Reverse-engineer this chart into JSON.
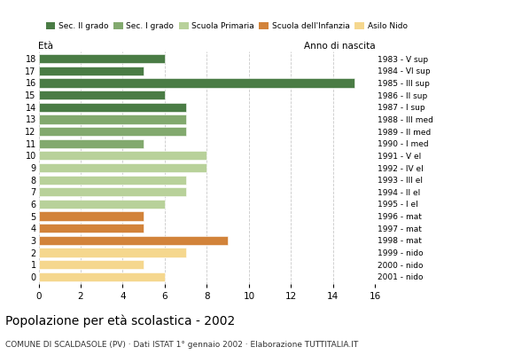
{
  "ages": [
    0,
    1,
    2,
    3,
    4,
    5,
    6,
    7,
    8,
    9,
    10,
    11,
    12,
    13,
    14,
    15,
    16,
    17,
    18
  ],
  "values": [
    6,
    5,
    7,
    9,
    5,
    5,
    6,
    7,
    7,
    8,
    8,
    5,
    7,
    7,
    7,
    6,
    15,
    5,
    6
  ],
  "categories": [
    "Sec. II grado",
    "Sec. I grado",
    "Scuola Primaria",
    "Scuola dell'Infanzia",
    "Asilo Nido"
  ],
  "colors": {
    "Sec. II grado": "#4a7c45",
    "Sec. I grado": "#82a96e",
    "Scuola Primaria": "#b8d19a",
    "Scuola dell'Infanzia": "#d2833a",
    "Asilo Nido": "#f5d78e"
  },
  "bar_colors": [
    "#f5d78e",
    "#f5d78e",
    "#f5d78e",
    "#d2833a",
    "#d2833a",
    "#d2833a",
    "#b8d19a",
    "#b8d19a",
    "#b8d19a",
    "#b8d19a",
    "#b8d19a",
    "#82a96e",
    "#82a96e",
    "#82a96e",
    "#4a7c45",
    "#4a7c45",
    "#4a7c45",
    "#4a7c45",
    "#4a7c45"
  ],
  "right_labels": [
    "2001 - nido",
    "2000 - nido",
    "1999 - nido",
    "1998 - mat",
    "1997 - mat",
    "1996 - mat",
    "1995 - I el",
    "1994 - II el",
    "1993 - III el",
    "1992 - IV el",
    "1991 - V el",
    "1990 - I med",
    "1989 - II med",
    "1988 - III med",
    "1987 - I sup",
    "1986 - II sup",
    "1985 - III sup",
    "1984 - VI sup",
    "1983 - V sup"
  ],
  "xlabel_left": "Età",
  "xlabel_right": "Anno di nascita",
  "title": "Popolazione per età scolastica - 2002",
  "subtitle": "COMUNE DI SCALDASOLE (PV) · Dati ISTAT 1° gennaio 2002 · Elaborazione TUTTITALIA.IT",
  "xlim": [
    0,
    16
  ],
  "xticks": [
    0,
    2,
    4,
    6,
    8,
    10,
    12,
    14,
    16
  ],
  "background_color": "#ffffff",
  "grid_color": "#bbbbbb"
}
